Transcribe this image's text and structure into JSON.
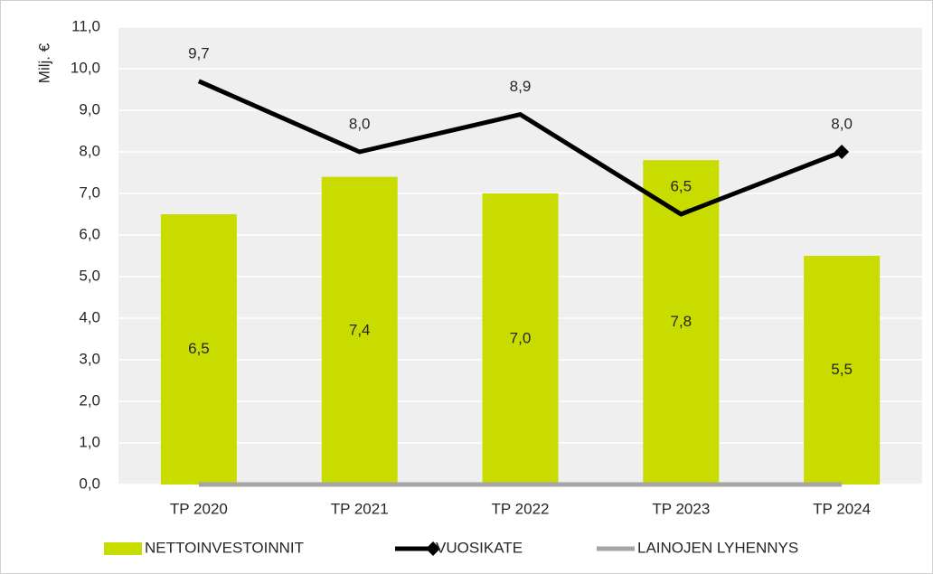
{
  "chart_data": {
    "type": "bar",
    "y_label": "Milj. €",
    "categories": [
      "TP 2020",
      "TP 2021",
      "TP 2022",
      "TP 2023",
      "TP 2024"
    ],
    "series": [
      {
        "name": "NETTOINVESTOINNIT",
        "type": "bar",
        "color": "#c8dc00",
        "values": [
          6.5,
          7.4,
          7.0,
          7.8,
          5.5
        ],
        "value_labels": [
          "6,5",
          "7,4",
          "7,0",
          "7,8",
          "5,5"
        ]
      },
      {
        "name": "VUOSIKATE",
        "type": "line",
        "color": "#000000",
        "values": [
          9.7,
          8.0,
          8.9,
          6.5,
          8.0
        ],
        "value_labels": [
          "9,7",
          "8,0",
          "8,9",
          "6,5",
          "8,0"
        ]
      },
      {
        "name": "LAINOJEN LYHENNYS",
        "type": "line",
        "color": "#a6a6a6",
        "values": [
          0,
          0,
          0,
          0,
          0
        ]
      }
    ],
    "ylim": [
      0,
      11
    ],
    "yticks": [
      {
        "value": 0,
        "label": "0,0"
      },
      {
        "value": 1,
        "label": "1,0"
      },
      {
        "value": 2,
        "label": "2,0"
      },
      {
        "value": 3,
        "label": "3,0"
      },
      {
        "value": 4,
        "label": "4,0"
      },
      {
        "value": 5,
        "label": "5,0"
      },
      {
        "value": 6,
        "label": "6,0"
      },
      {
        "value": 7,
        "label": "7,0"
      },
      {
        "value": 8,
        "label": "8,0"
      },
      {
        "value": 9,
        "label": "9,0"
      },
      {
        "value": 10,
        "label": "10,0"
      },
      {
        "value": 11,
        "label": "11,0"
      }
    ],
    "grid": true,
    "legend": "bottom"
  }
}
